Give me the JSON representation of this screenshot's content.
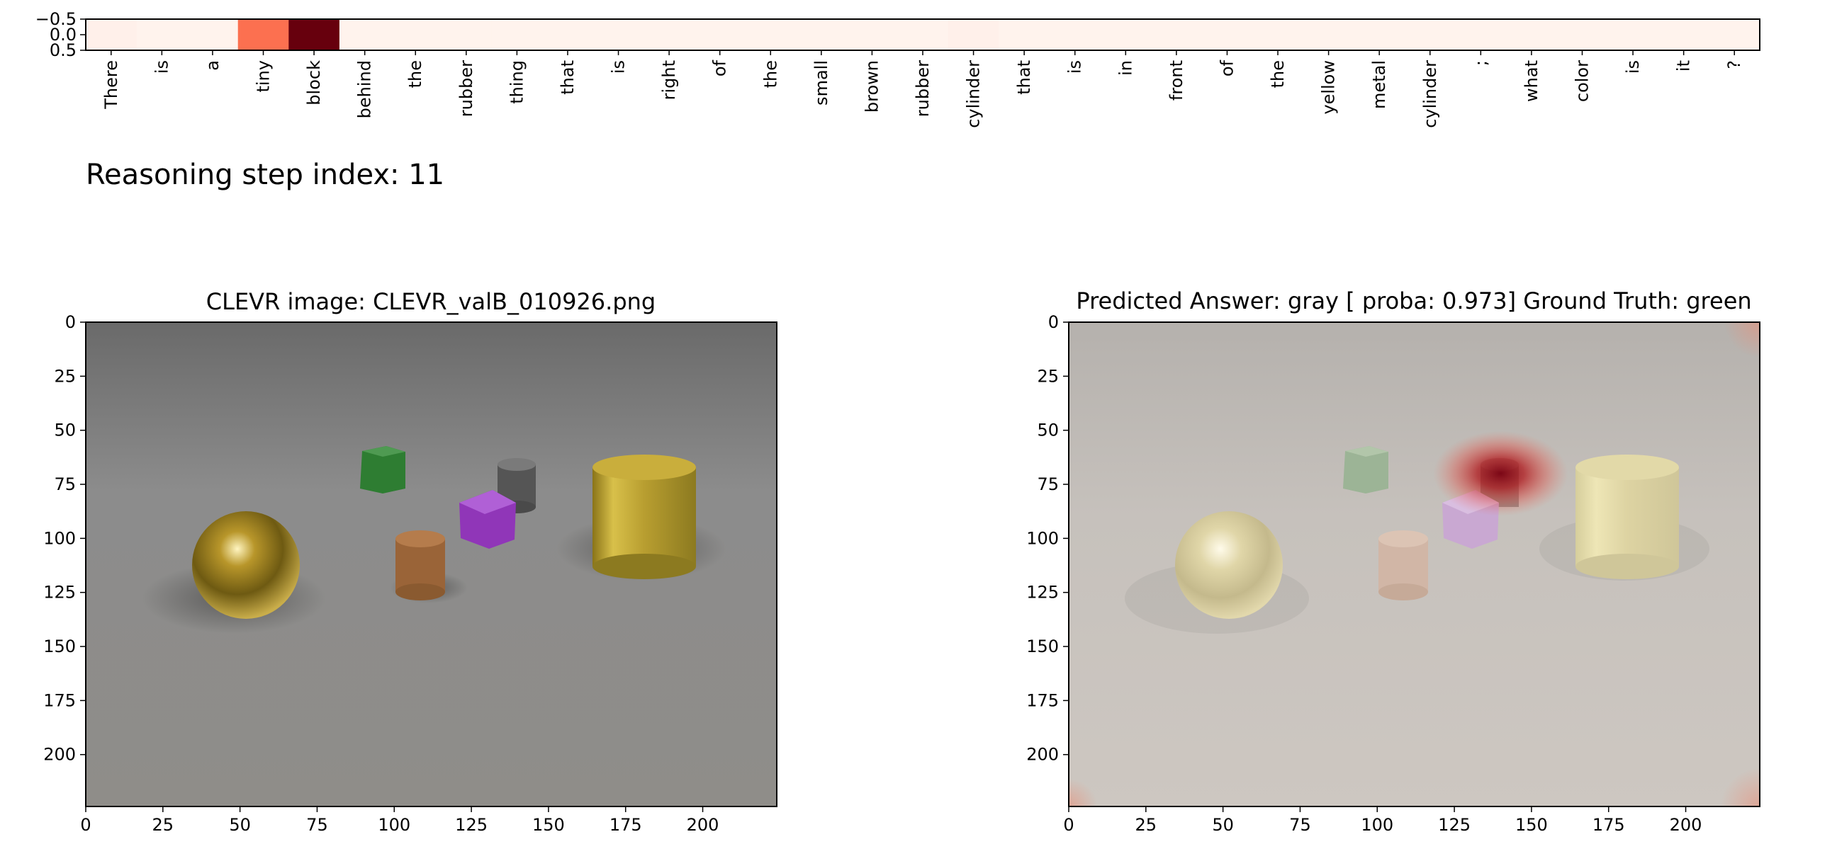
{
  "chart_data": [
    {
      "type": "heatmap",
      "tokens": [
        "There",
        "is",
        "a",
        "tiny",
        "block",
        "behind",
        "the",
        "rubber",
        "thing",
        "that",
        "is",
        "right",
        "of",
        "the",
        "small",
        "brown",
        "rubber",
        "cylinder",
        "that",
        "is",
        "in",
        "front",
        "of",
        "the",
        "yellow",
        "metal",
        "cylinder",
        ";",
        "what",
        "color",
        "is",
        "it",
        "?"
      ],
      "attention": [
        0.02,
        0.01,
        0.01,
        0.45,
        1.0,
        0.01,
        0.01,
        0.01,
        0.01,
        0.01,
        0.01,
        0.01,
        0.01,
        0.01,
        0.01,
        0.01,
        0.01,
        0.02,
        0.01,
        0.01,
        0.01,
        0.01,
        0.01,
        0.01,
        0.01,
        0.01,
        0.01,
        0.01,
        0.01,
        0.01,
        0.01,
        0.01,
        0.01
      ],
      "y_ticks": [
        "−0.5",
        "0.0",
        "0.5"
      ],
      "colormap": "Reds"
    },
    {
      "type": "image",
      "title": "CLEVR image: CLEVR_valB_010926.png",
      "x_ticks": [
        0,
        25,
        50,
        75,
        100,
        125,
        150,
        175,
        200
      ],
      "y_ticks": [
        0,
        25,
        50,
        75,
        100,
        125,
        150,
        175,
        200
      ],
      "xlim": [
        0,
        224
      ],
      "ylim": [
        224,
        0
      ]
    },
    {
      "type": "image",
      "title": "Predicted Answer: gray [ proba: 0.973]  Ground Truth: green",
      "x_ticks": [
        0,
        25,
        50,
        75,
        100,
        125,
        150,
        175,
        200
      ],
      "y_ticks": [
        0,
        25,
        50,
        75,
        100,
        125,
        150,
        175,
        200
      ],
      "xlim": [
        0,
        224
      ],
      "ylim": [
        224,
        0
      ],
      "attention_peak": {
        "x": 140,
        "y": 70
      }
    }
  ],
  "step_label": "Reasoning step index: 11",
  "colors": {
    "heat_low": "#fff5f0",
    "heat_mid": "#fc7050",
    "heat_high": "#67000d",
    "scene_bg": "#8a8a8a",
    "gold": "#c8a830",
    "green_cube": "#2e7d32",
    "purple_cube": "#9c3fbf",
    "brown_cyl": "#a0683c",
    "gray_cyl": "#5a5a5a"
  }
}
